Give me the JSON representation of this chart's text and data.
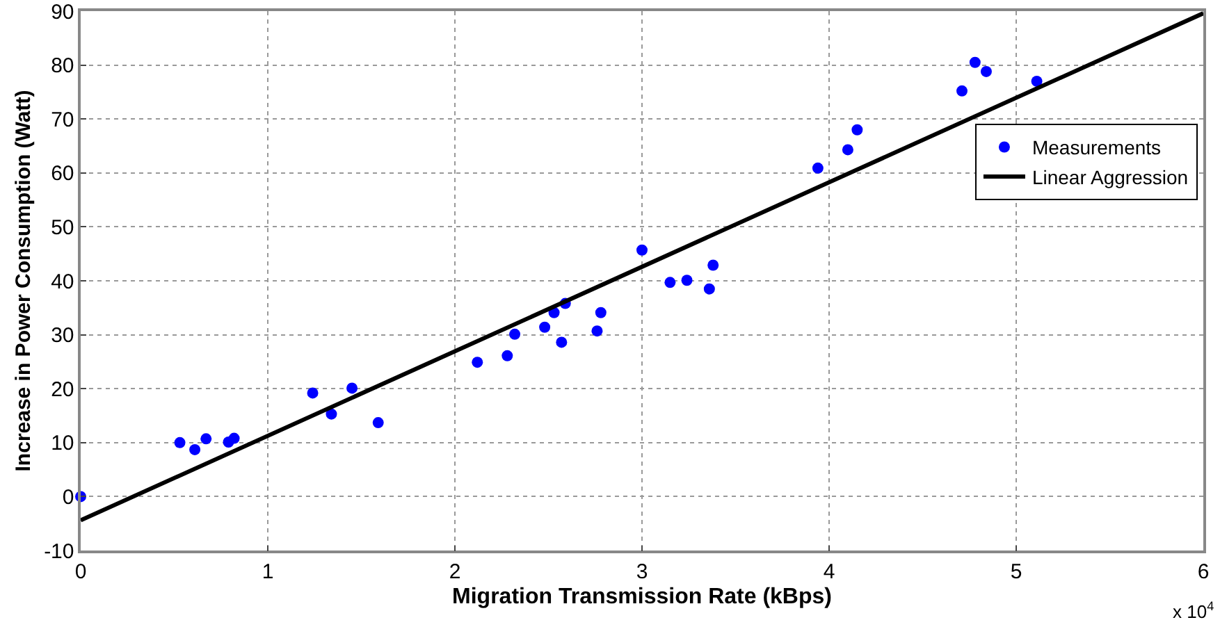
{
  "chart_data": {
    "type": "scatter",
    "xlabel": "Migration Transmission Rate (kBps)",
    "ylabel": "Increase in Power Consumption (Watt)",
    "annotations": [
      "x 10$^{4}$"
    ],
    "xlim": [
      0,
      6
    ],
    "xticks": [
      0,
      1,
      2,
      3,
      4,
      5,
      6
    ],
    "ylim": [
      -10,
      90
    ],
    "yticks": [
      -10,
      0,
      10,
      20,
      30,
      40,
      50,
      60,
      70,
      80,
      90
    ],
    "grid": true,
    "legend": "right",
    "series": [
      {
        "name": "Measurements",
        "marker": "circle",
        "color": "#0000ff",
        "x": [
          0,
          0.53,
          0.61,
          0.67,
          0.79,
          0.82,
          1.24,
          1.34,
          1.45,
          1.59,
          2.12,
          2.28,
          2.32,
          2.48,
          2.53,
          2.59,
          2.57,
          2.76,
          2.78,
          3.0,
          3.15,
          3.24,
          3.36,
          3.38,
          3.94,
          4.1,
          4.15,
          4.71,
          4.78,
          4.84,
          5.11
        ],
        "values": [
          0,
          10,
          8.7,
          10.7,
          10.1,
          10.8,
          19.2,
          15.3,
          20.1,
          13.7,
          24.9,
          26.1,
          30.1,
          31.4,
          34.1,
          35.8,
          28.6,
          30.7,
          34.1,
          45.7,
          39.7,
          40.1,
          38.5,
          42.9,
          60.9,
          64.3,
          68,
          75.2,
          80.5,
          78.8,
          77
        ]
      },
      {
        "name": "Linear Aggression",
        "type": "line",
        "color": "#000000",
        "line_style": "solid",
        "x": [
          0,
          6
        ],
        "values": [
          -4.4,
          89.6
        ]
      }
    ]
  }
}
